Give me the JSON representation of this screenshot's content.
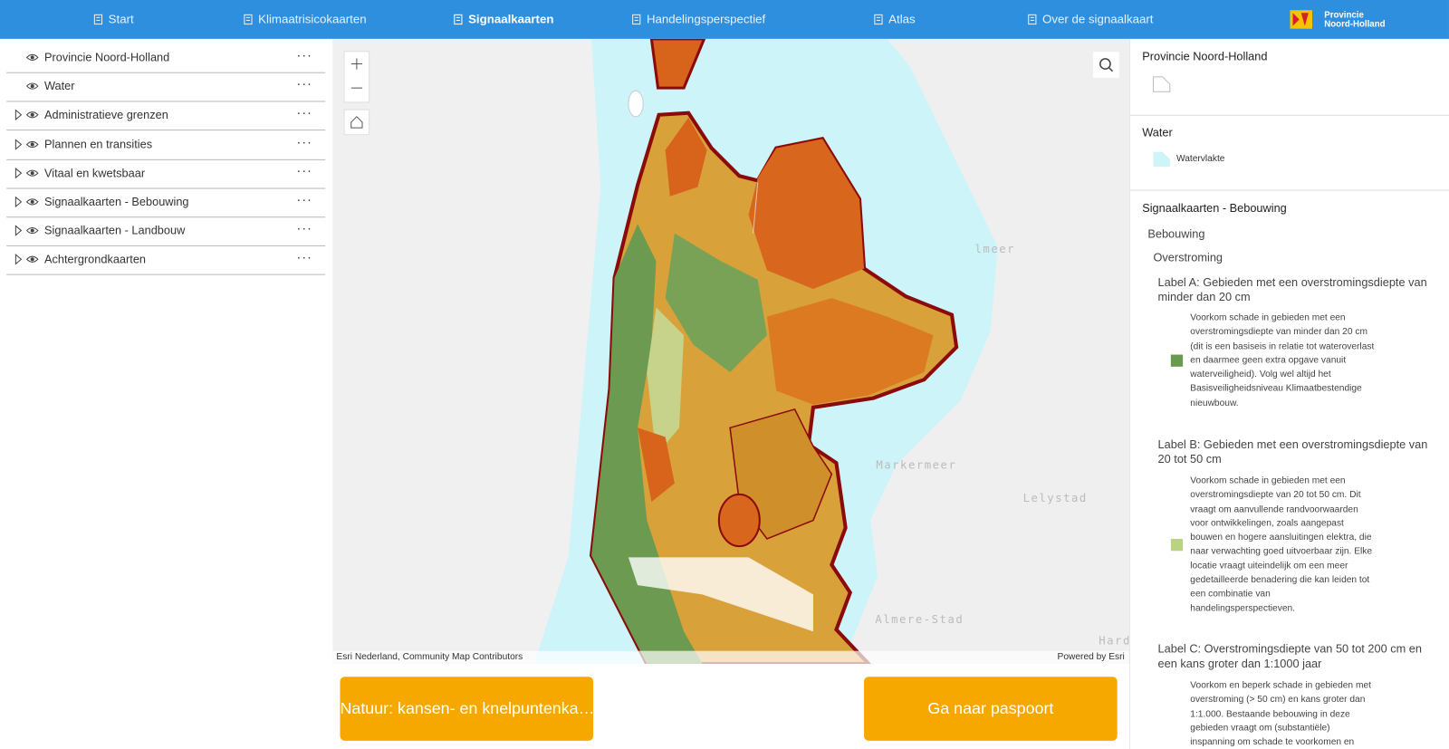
{
  "nav": {
    "items": [
      "Start",
      "Klimaatrisicokaarten",
      "Signaalkaarten",
      "Handelingsperspectief",
      "Atlas",
      "Over de signaalkaart"
    ],
    "logo": {
      "line1": "Provincie",
      "line2": "Noord-Holland"
    }
  },
  "layers": [
    "Provincie Noord-Holland",
    "Water",
    "Administratieve grenzen",
    "Plannen en transities",
    "Vitaal en kwetsbaar",
    "Signaalkaarten - Bebouwing",
    "Signaalkaarten - Landbouw",
    "Achtergrondkaarten"
  ],
  "map": {
    "labels": [
      "lmeer",
      "Markermeer",
      "Lelystad",
      "Almere-Stad",
      "Harde"
    ],
    "attribution": "Esri Nederland, Community Map Contributors",
    "powered_by": "Powered by Esri"
  },
  "buttons": [
    "Natuur: kansen- en knelpuntenka…",
    "Ga naar paspoort"
  ],
  "legend": {
    "sections": [
      {
        "title": "Provincie Noord-Holland"
      },
      {
        "title": "Water",
        "items": [
          "Watervlakte"
        ]
      },
      {
        "title": "Signaalkaarten - Bebouwing",
        "group": "Bebouwing",
        "subgroup": "Overstroming",
        "classes": [
          {
            "label": "Label A: Gebieden met een overstromingsdiepte van minder dan 20 cm",
            "description": "Voorkom schade in gebieden met een overstromingsdiepte van minder dan 20 cm (dit is een basiseis in relatie tot wateroverlast en daarmee geen extra opgave vanuit waterveiligheid). Volg wel altijd het Basisveiligheidsniveau Klimaatbestendige nieuwbouw.",
            "color": "#6a9a52"
          },
          {
            "label": "Label B: Gebieden met een overstromingsdiepte van 20 tot 50 cm",
            "description": "Voorkom schade in gebieden met een overstromingsdiepte van 20 tot 50 cm. Dit vraagt om aanvullende randvoorwaarden voor ontwikkelingen, zoals aangepast bouwen en hogere aansluitingen elektra, die naar verwachting goed uitvoerbaar zijn. Elke locatie vraagt uiteindelijk om een meer gedetailleerde benadering die kan leiden tot een combinatie van handelingsperspectieven.",
            "color": "#bcd283"
          },
          {
            "label": "Label C: Overstromingsdiepte van 50 tot 200 cm en een kans groter dan 1:1000 jaar",
            "description": "Voorkom en beperk schade in gebieden met overstroming (> 50 cm) en kans groter dan 1:1.000. Bestaande bebouwing in deze gebieden vraagt om (substantiële) inspanning om schade te voorkomen en"
          }
        ]
      }
    ]
  }
}
